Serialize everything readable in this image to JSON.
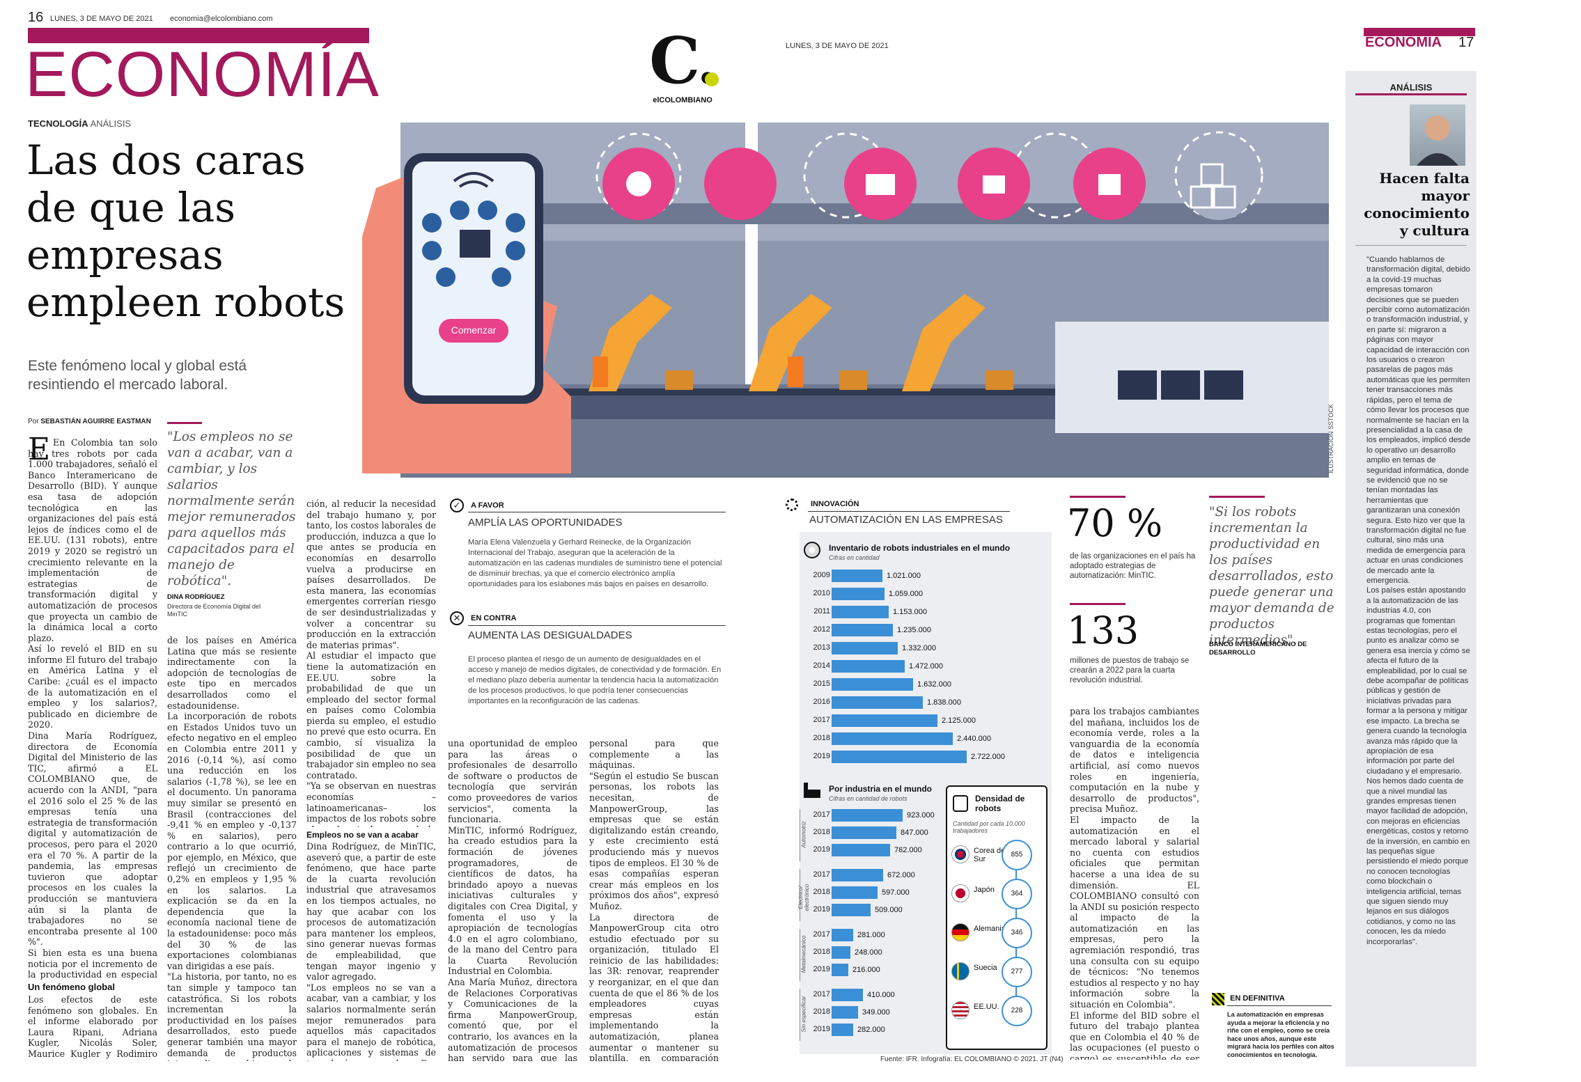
{
  "left_page": {
    "page_number": "16",
    "date": "LUNES, 3 DE MAYO DE 2021",
    "email": "economia@elcolombiano.com",
    "section": "ECONOMÍA",
    "kicker_a": "TECNOLOGÍA",
    "kicker_b": "ANÁLISIS",
    "headline": "Las dos caras\nde que las\nempresas\nempleen robots",
    "subtitle": "Este fenómeno local y global está\nresintiendo el mercado laboral.",
    "byline_pre": "Por",
    "byline": "SEBASTIÁN AGUIRRE EASTMAN",
    "col1_text": "En Colombia tan solo hay tres robots por cada 1.000 trabajadores, señaló el Banco Interamericano de Desarrollo (BID). Y aunque esa tasa de adopción tecnológica en las organizaciones del país está lejos de índices como el de EE.UU. (131 robots), entre 2019 y 2020 se registró un crecimiento relevante en la implementación de estrategias de transformación digital y automatización de procesos que proyecta un cambio de la dinámica local a corto plazo.\nAsí lo reveló el BID en su informe El futuro del trabajo en América Latina y el Caribe: ¿cuál es el impacto de la automatización en el empleo y los salarios?, publicado en diciembre de 2020.\nDina María Rodríguez, directora de Economía Digital del Ministerio de las TIC, afirmó a EL COLOMBIANO que, de acuerdo con la ANDI, \"para el 2016 solo el 25 % de las empresas tenía una estrategia de transformación digital y automatización de procesos, pero para el 2020 era el 70 %. A partir de la pandemia, las empresas tuvieron que adoptar procesos en los cuales la producción se mantuviera aún si la planta de trabajadores no se encontraba presente al 100 %\".\nSi bien esta es una buena noticia por el incremento de la productividad en especial para sectores como el de las manufacturas y los servicios, según Rodríguez, para el mercado laboral no deja de generar incertidumbre en cuanto a la posibilidad de que esa transformación impacte de forma negativa la empleabilidad y los salarios.",
    "subhead_1": "Un fenómeno global",
    "col1_text_b": "Los efectos de este fenómeno son globales. En el informe elaborado por Laura Ripani, Adriana Kugler, Nicolás Soler, Maurice Kugler y Rodimiro Rodrigo, el BID da cuenta de que Colombia es uno",
    "quote": "\"Los empleos no se van a acabar, van a cambiar, y los salarios normalmente serán mejor remunerados para aquellos más capacitados para el manejo de robótica\".",
    "quote_author": "DINA RODRÍGUEZ",
    "quote_role": "Directora de Economía Digital del MinTIC",
    "col2_text": "de los países en América Latina que más se resiente indirectamente con la adopción de tecnologías de este tipo en mercados desarrollados como el estadounidense.\nLa incorporación de robots en Estados Unidos tuvo un efecto negativo en el empleo en Colombia entre 2011 y 2016 (-0,14 %), así como una reducción en los salarios (-1,78 %), se lee en el documento. Un panorama muy similar se presentó en Brasil (contracciones del -9,41 % en empleo y -0,137 % en salarios), pero contrario a lo que ocurrió, por ejemplo, en México, que reflejó un crecimiento de 0,2% en empleos y 1,95 % en los salarios. La explicación se da en la dependencia que la economía nacional tiene de la estadounidense: poco más del 30 % de las exportaciones colombianas van dirigidas a ese país.\n\"La historia, por tanto, no es tan simple y tampoco tan catastrófica. Si los robots incrementan la productividad en los países desarrollados, esto puede generar también una mayor demanda de productos intermedios y bienes de consumo producidos en los países en desarrollo, mientras los empleos\", comentan los autores, no sin antes expresar que \"la preocupación es que la automatiza-",
    "col3_text": "ción, al reducir la necesidad del trabajo humano y, por tanto, los costos laborales de producción, induzca a que lo que antes se producía en economías en desarrollo vuelva a producirse en países desarrollados. De esta manera, las economías emergentes correrían riesgo de ser desindustrializadas y volver a concentrar su producción en la extracción de materias primas\".\nAl estudiar el impacto que tiene la automatización en EE.UU. sobre la probabilidad de que un empleado del sector formal en países como Colombia pierda su empleo, el estudio no prevé que esto ocurra. En cambio, sí visualiza la posibilidad de que un trabajador sin empleo no sea contratado.\n\"Ya se observan en nuestras economías –latinoamericanas– los impactos de los robots sobre el empleo; incluso cuando la llegada directa de los robots no sea aún tan significativa\", afirman en el documento del BID.",
    "subhead_2": "Empleos no se van a acabar",
    "col3_text_b": "Dina Rodríguez, de MinTIC, aseveró que, a partir de este fenómeno, que hace parte de la cuarta revolución industrial que atravesamos en los tiempos actuales, no hay que acabar con los procesos de automatización para mantener los empleos, sino generar nuevas formas de empleabilidad, que tengan mayor ingenio y valor agregado.\n\"Los empleos no se van a acabar, van a cambiar, y los salarios normalmente serán mejor remunerados para aquellos más capacitados para el manejo de robótica, aplicaciones y sistemas de tecnología avanzados. Por esto, la automatización será"
  },
  "logo": {
    "letter": "C.",
    "name": "elCOLOMBIANO"
  },
  "illustration": {
    "button_label": "Comenzar",
    "credit": "ILUSTRACIÓN SSTOCK"
  },
  "pros_cons": {
    "favor_label": "A FAVOR",
    "favor_title": "AMPLÍA LAS OPORTUNIDADES",
    "favor_text": "María Elena Valenzuela y Gerhard Reinecke, de la Organización Internacional del Trabajo, aseguran que la aceleración de la automatización en las cadenas mundiales de suministro tiene el potencial de disminuir brechas, ya que el comercio electrónico amplía oportunidades para los esIabones más bajos en países en desarrollo.",
    "contra_label": "EN CONTRA",
    "contra_title": "AUMENTA LAS DESIGUALDADES",
    "contra_text": "El proceso plantea el riesgo de un aumento de desigualdades en el acceso y manejo de medios digitales, de conectividad y de formación. En el mediano plazo debería aumentar la tendencia hacia la automatización de los procesos productivos, lo que podría tener consecuencias importantes en la reconfiguración de las cadenas."
  },
  "center_bottom": {
    "col4_text": "una oportunidad de empleo para las áreas o profesionales de desarrollo de software o productos de tecnología que servirán como proveedores de varios servicios\", comenta la funcionaria.\nMinTIC, informó Rodríguez, ha creado estudios para la formación de jóvenes programadores, de científicos de datos, ha brindado apoyo a nuevas iniciativas culturales y digitales con Crea Digital, y fomenta el uso y la apropiación de tecnologías 4.0 en el agro colombiano, de la mano del Centro para la Cuarta Revolución Industrial en Colombia.\nAna María Muñoz, directora de Relaciones Corporativas y Comunicaciones de la firma ManpowerGroup, comentó que, por el contrario, los avances en la automatización de procesos han servido para que las organizaciones amplíen sus conocimientos respecto a las nuevas tecnologías. \"Esta revolución está creando, y refuercen las capacitaciones a su",
    "col5_text": "personal para que complemente a las máquinas.\n\"Según el estudio Se buscan personas, los robots las necesitan, de ManpowerGroup, las empresas que se están digitalizando están creando, y este crecimiento está produciendo más y nuevos tipos de empleos. El 30 % de esas compañías esperan crear más empleos en los próximos dos años\", expresó Muñoz.\nLa directora de ManpowerGroup cita otro estudio efectuado por su organización, titulado El reinicio de las habilidades: las 3R: renovar, reaprender y reorganizar, en el que dan cuenta de que el 86 % de los empleadores cuyas empresas están implementando la automatización, planea aumentar o mantener su plantilla, en comparación con el 11 % que, por el contrario, piensa reducirla.\n\"Con la aceleración de los cambios tecnológicos, las personas deben prepararse"
  },
  "right_page": {
    "date": "LUNES, 3 DE MAYO DE 2021",
    "section": "ECONOMÍA",
    "page_number": "17",
    "innovation_label": "INNOVACIÓN",
    "innovation_title": "AUTOMATIZACIÓN EN LAS EMPRESAS",
    "stat1_value": "70 %",
    "stat1_text": "de las organizaciones en el país ha adoptado estrategias de automatización: MinTIC.",
    "stat2_value": "133",
    "stat2_text": "millones de puestos de trabajo se crearán a 2022 para la cuarta revolución industrial.",
    "quote": "\"Si los robots incrementan la productividad en los países desarrollados, esto puede generar una mayor demanda de productos intermedios\".",
    "quote_author": "BANCO INTERAMERICANO DE DESARROLLO",
    "col6_text": "para los trabajos cambiantes del mañana, incluidos los de economía verde, roles a la vanguardia de la economía de datos e inteligencia artificial, así como nuevos roles en ingeniería, computación en la nube y desarrollo de productos\", precisa Muñoz.\nEl impacto de la automatización en el mercado laboral y salarial no cuenta con estudios oficiales que permitan hacerse a una idea de su dimensión. EL COLOMBIANO consultó con la ANDI su posición respecto al impacto de la automatización en las empresas, pero la agremiación respondió, tras una consulta con su equipo de técnicos: \"No tenemos estudios al respecto y no hay información sobre la situación en Colombia\".\nEl informe del BID sobre el futuro del trabajo plantea que en Colombia el 40 % de las ocupaciones (el puesto o cargo) es susceptible de ser automatizado, pero solo lo es el 5 % de las tareas podrían llegar a ese nivel (lo que una persona debe hacer en su posición)",
    "definitiva_label": "EN DEFINITIVA",
    "definitiva_text": "La automatización en empresas ayuda a mejorar la eficiencia y no riñe con el empleo, como se creía hace unos años, aunque este migrará hacia los perfiles con altos conocimientos en tecnología.",
    "source": "Fuente: IFR. Infografía: EL COLOMBIANO © 2021. JT (N4)"
  },
  "analysis": {
    "label": "ANÁLISIS",
    "title": "Hacen falta\nmayor\nconocimiento\ny cultura",
    "text": "\"Cuando hablamos de transformación digital, debido a la covid-19 muchas empresas tomaron decisiones que se pueden percibir como automatización o transformación industrial, y en parte sí: migraron a páginas con mayor capacidad de interacción con los usuarios o crearon pasarelas de pagos más automáticas que les permiten tener transacciones más rápidas, pero el tema de cómo llevar los procesos que normalmente se hacían en la presencialidad a la casa de los empleados, implicó desde lo operativo un desarrollo amplio en temas de seguridad informática, donde se evidenció que no se tenían montadas las herramientas que garantizaran una conexión segura. Esto hizo ver que la transformación digital no fue cultural, sino más una medida de emergencia para actuar en unas condiciones de mercado ante la emergencia.\nLos países están apostando a la automatización de las industrias 4.0, con programas que fomentan estas tecnologías, pero el punto es analizar cómo se genera esa inercia y cómo se afecta el futuro de la empleabilidad, por lo cual se debe acompañar de políticas públicas y gestión de iniciativas privadas para formar a la persona y mitigar ese impacto. La brecha se genera cuando la tecnología avanza más rápido que la apropiación de esa información por parte del ciudadano y el empresario. Nos hemos dado cuenta de que a nivel mundial las grandes empresas tienen mayor facilidad de adopción, con mejoras en eficiencias energéticas, costos y retorno de la inversión, en cambio en las pequeñas sigue persistiendo el miedo porque no conocen tecnologías como blockchain o inteligencia artificial, temas que siguen siendo muy lejanos en sus diálogos cotidianos, y como no las conocen, les da miedo incorporarlas\"."
  },
  "chart_data": [
    {
      "type": "bar",
      "title": "Inventario de robots industriales en el mundo",
      "subtitle": "Cifras en cantidad",
      "categories": [
        "2009",
        "2010",
        "2011",
        "2012",
        "2013",
        "2014",
        "2015",
        "2016",
        "2017",
        "2018",
        "2019"
      ],
      "values": [
        1021000,
        1059000,
        1153000,
        1235000,
        1332000,
        1472000,
        1632000,
        1838000,
        2125000,
        2440000,
        2722000
      ],
      "labels": [
        "1.021.000",
        "1.059.000",
        "1.153.000",
        "1.235.000",
        "1.332.000",
        "1.472.000",
        "1.632.000",
        "1.838.000",
        "2.125.000",
        "2.440.000",
        "2.722.000"
      ]
    },
    {
      "type": "bar",
      "title": "Por industria en el mundo",
      "subtitle": "Cifras en cantidad de robots",
      "groups": [
        {
          "name": "Automotriz",
          "categories": [
            "2017",
            "2018",
            "2019"
          ],
          "values": [
            923000,
            847000,
            762000
          ],
          "labels": [
            "923.000",
            "847.000",
            "762.000"
          ]
        },
        {
          "name": "Eléctrico/ electrónico",
          "categories": [
            "2017",
            "2018",
            "2019"
          ],
          "values": [
            672000,
            597000,
            509000
          ],
          "labels": [
            "672.000",
            "597.000",
            "509.000"
          ]
        },
        {
          "name": "Metalmecánico",
          "categories": [
            "2017",
            "2018",
            "2019"
          ],
          "values": [
            281000,
            248000,
            216000
          ],
          "labels": [
            "281.000",
            "248.000",
            "216.000"
          ]
        },
        {
          "name": "Sin especificar",
          "categories": [
            "2017",
            "2018",
            "2019"
          ],
          "values": [
            410000,
            349000,
            282000
          ],
          "labels": [
            "410.000",
            "349.000",
            "282.000"
          ]
        }
      ]
    },
    {
      "type": "table",
      "title": "Densidad de robots",
      "subtitle": "Cantidad por cada 10.000 trabajadores",
      "rows": [
        {
          "country": "Corea del Sur",
          "value": 855
        },
        {
          "country": "Japón",
          "value": 364
        },
        {
          "country": "Alemania",
          "value": 346
        },
        {
          "country": "Suecia",
          "value": 277
        },
        {
          "country": "EE.UU.",
          "value": 228
        }
      ]
    }
  ]
}
